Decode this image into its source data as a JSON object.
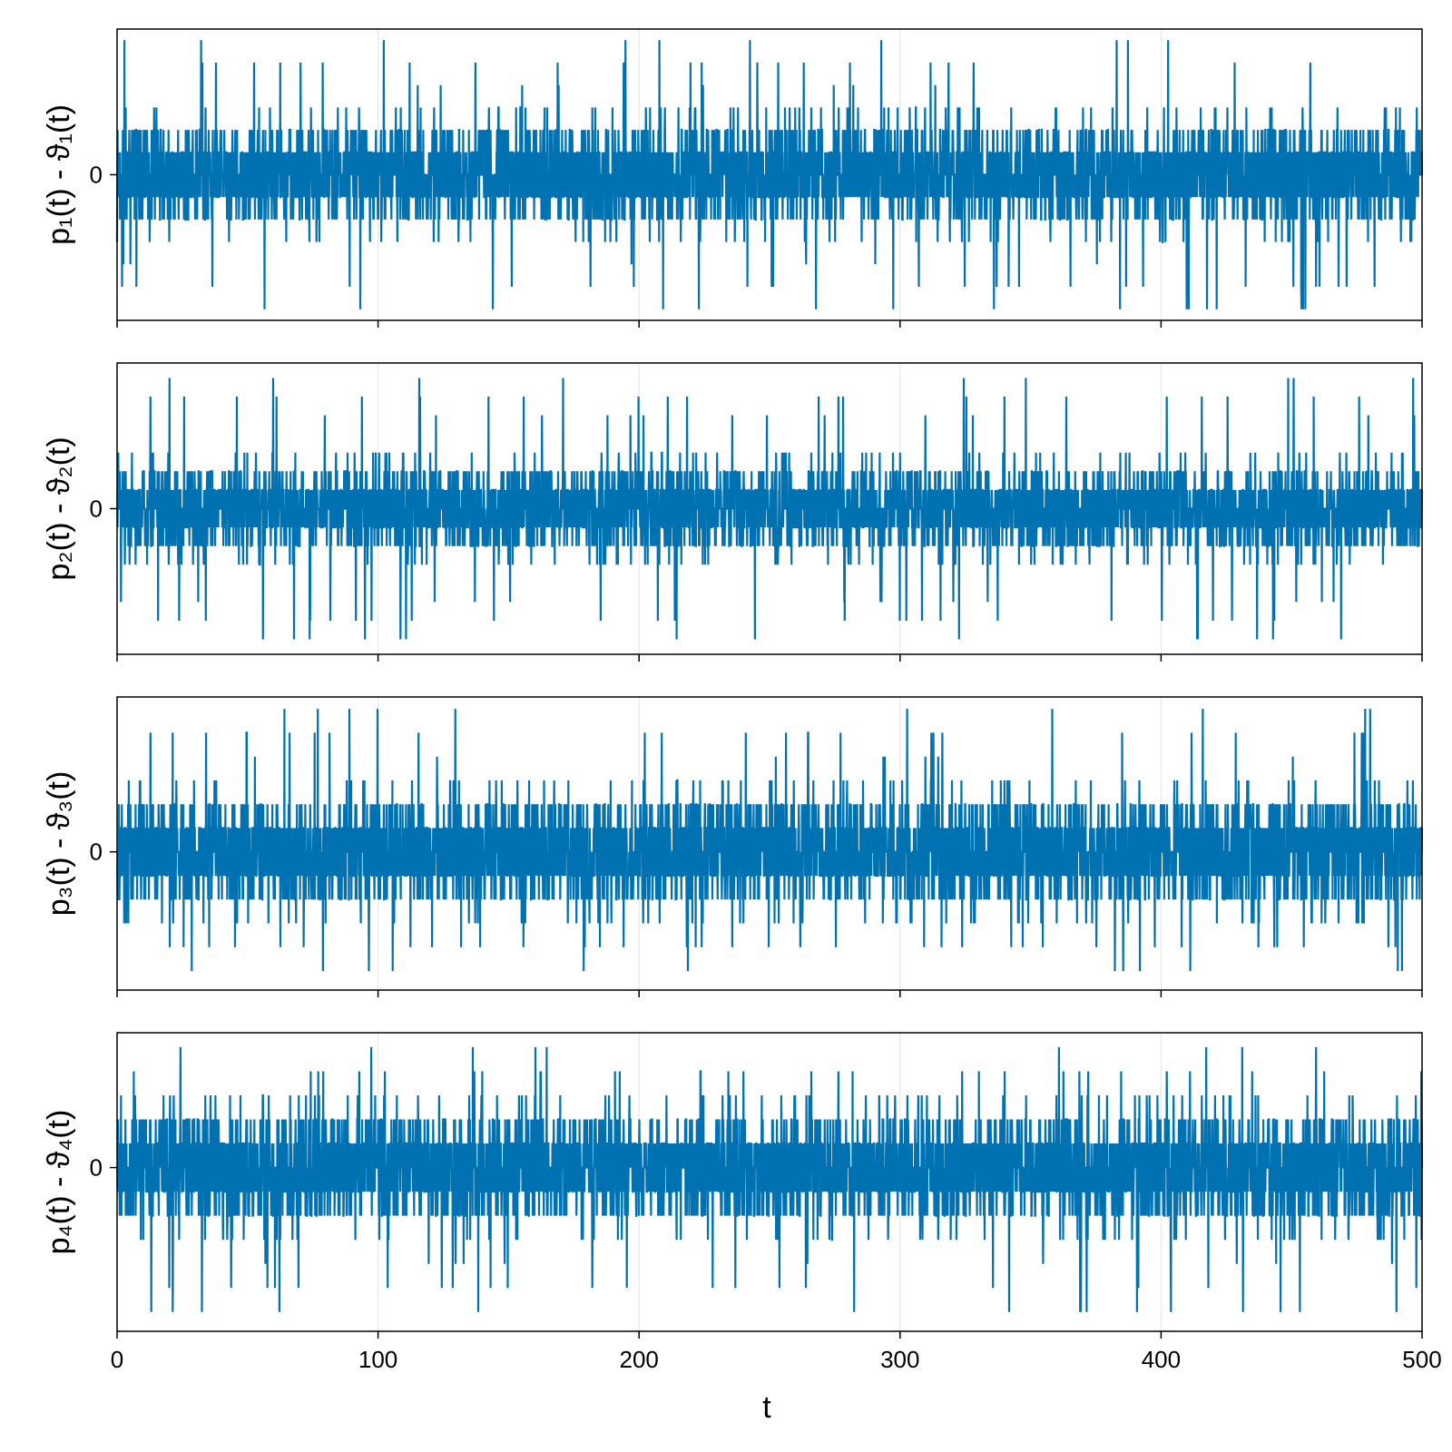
{
  "chart_data": [
    {
      "type": "line",
      "ylabel": "p₁(t) - ϑ₁(t)",
      "xlim": [
        0,
        500
      ],
      "x_ticks": [
        "0",
        "100",
        "200",
        "300",
        "400",
        "500"
      ],
      "y_ticks": [
        "0"
      ],
      "ylim": [
        -6.5,
        6.5
      ],
      "grid": true,
      "color": "#0072b2",
      "series": [
        {
          "x": [
            0,
            500
          ],
          "step": 1,
          "seed": 11,
          "y_range": [
            -6,
            6
          ],
          "y_shown_extremes": {
            "max": 5.8,
            "min": -6
          }
        }
      ]
    },
    {
      "type": "line",
      "ylabel": "p₂(t) - ϑ₂(t)",
      "xlim": [
        0,
        500
      ],
      "x_ticks": [
        "0",
        "100",
        "200",
        "300",
        "400",
        "500"
      ],
      "y_ticks": [
        "0"
      ],
      "ylim": [
        -7.8,
        7.8
      ],
      "grid": true,
      "color": "#0072b2",
      "series": [
        {
          "x": [
            0,
            500
          ],
          "step": 1,
          "seed": 22,
          "y_range": [
            -7,
            7
          ],
          "y_shown_extremes": {
            "max": 7,
            "min": -7
          }
        }
      ]
    },
    {
      "type": "line",
      "ylabel": "p₃(t) - ϑ₃(t)",
      "xlim": [
        0,
        500
      ],
      "x_ticks": [
        "0",
        "100",
        "200",
        "300",
        "400",
        "500"
      ],
      "y_ticks": [
        "0"
      ],
      "ylim": [
        -5.8,
        6.5
      ],
      "grid": true,
      "color": "#0072b2",
      "series": [
        {
          "x": [
            0,
            500
          ],
          "step": 1,
          "seed": 33,
          "y_range": [
            -5,
            6
          ],
          "y_shown_extremes": {
            "max": 6,
            "min": -5
          }
        }
      ]
    },
    {
      "type": "line",
      "ylabel": "p₄(t) - ϑ₄(t)",
      "xlim": [
        0,
        500
      ],
      "x_ticks": [
        "0",
        "100",
        "200",
        "300",
        "400",
        "500"
      ],
      "y_ticks": [
        "0"
      ],
      "ylim": [
        -6.8,
        5.6
      ],
      "grid": true,
      "color": "#0072b2",
      "series": [
        {
          "x": [
            0,
            500
          ],
          "step": 1,
          "seed": 44,
          "y_range": [
            -6,
            5
          ],
          "y_shown_extremes": {
            "max": 5,
            "min": -6
          }
        }
      ]
    }
  ],
  "xlabel": "t"
}
